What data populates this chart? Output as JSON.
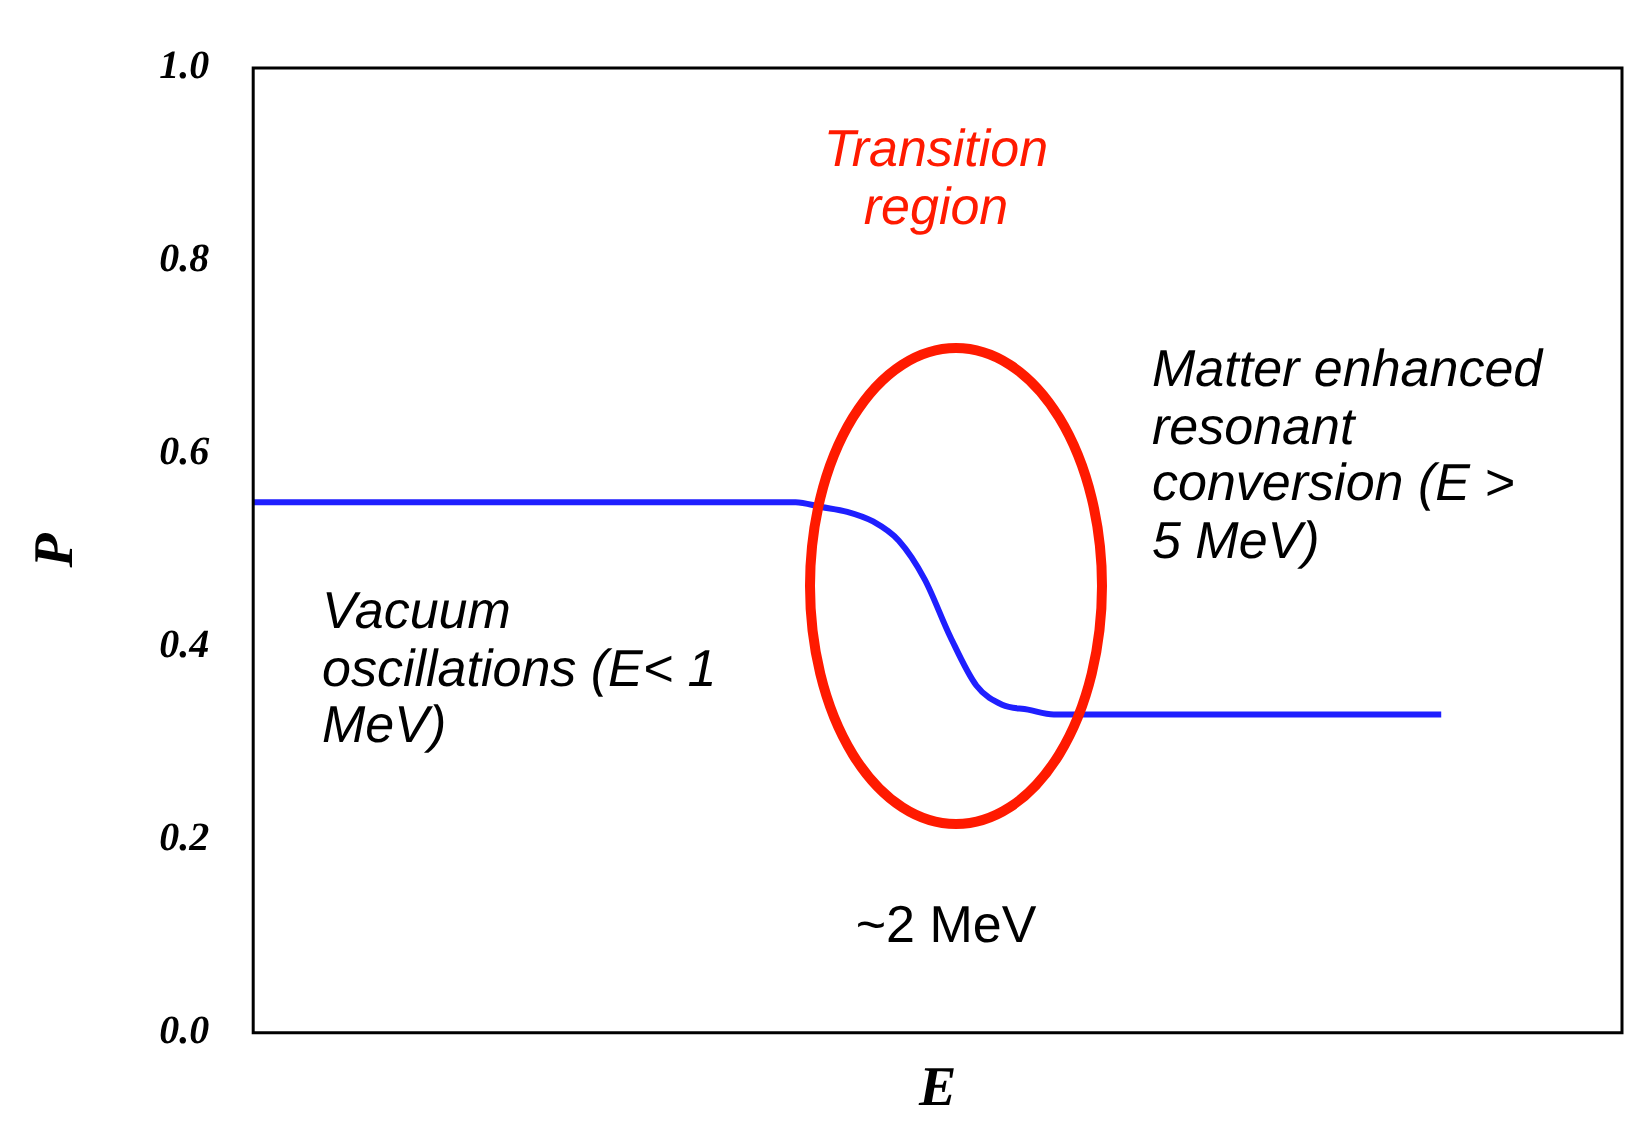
{
  "chart_data": {
    "type": "line",
    "xlabel": "E",
    "ylabel": "P",
    "categories": [
      null,
      null,
      null,
      null,
      null,
      null,
      null,
      null,
      null,
      null,
      null,
      null,
      null,
      null,
      null,
      null,
      null,
      null,
      null,
      null,
      null,
      null,
      null,
      null,
      null,
      null,
      null,
      null,
      null,
      null,
      null,
      null,
      null,
      null,
      null,
      null,
      null,
      null,
      null,
      null,
      null,
      null,
      null,
      null,
      null,
      null,
      null,
      null,
      null,
      null,
      null,
      null,
      null,
      null
    ],
    "series": [
      {
        "color": "#1f1fff",
        "values": [
          0.55,
          0.55,
          0.55,
          0.55,
          0.55,
          0.55,
          0.55,
          0.55,
          0.55,
          0.55,
          0.55,
          0.55,
          0.55,
          0.55,
          0.55,
          0.55,
          0.55,
          0.55,
          0.55,
          0.55,
          0.55,
          0.55,
          0.545,
          0.54,
          0.53,
          0.51,
          0.47,
          0.41,
          0.36,
          0.34,
          0.335,
          0.33,
          0.33,
          0.33,
          0.33,
          0.33,
          0.33,
          0.33,
          0.33,
          0.33,
          0.33,
          0.33,
          0.33,
          0.33,
          0.33,
          0.33,
          0.33,
          null,
          null,
          null,
          null,
          null,
          null,
          null
        ]
      }
    ],
    "ylim": [
      0,
      1
    ],
    "yticks": [
      {
        "value": 0,
        "label": "0.0"
      },
      {
        "value": 0.2,
        "label": "0.2"
      },
      {
        "value": 0.4,
        "label": "0.4"
      },
      {
        "value": 0.6,
        "label": "0.6"
      },
      {
        "value": 0.8,
        "label": "0.8"
      },
      {
        "value": 1,
        "label": "1.0"
      }
    ],
    "tick_labels": "y",
    "marker": "none",
    "line_style": "solid",
    "annotations": [
      "Transition region",
      "Matter enhanced resonant conversion (E > 5 MeV)",
      "Vacuum oscillations (E< 1 MeV)",
      "~2 MeV"
    ]
  }
}
